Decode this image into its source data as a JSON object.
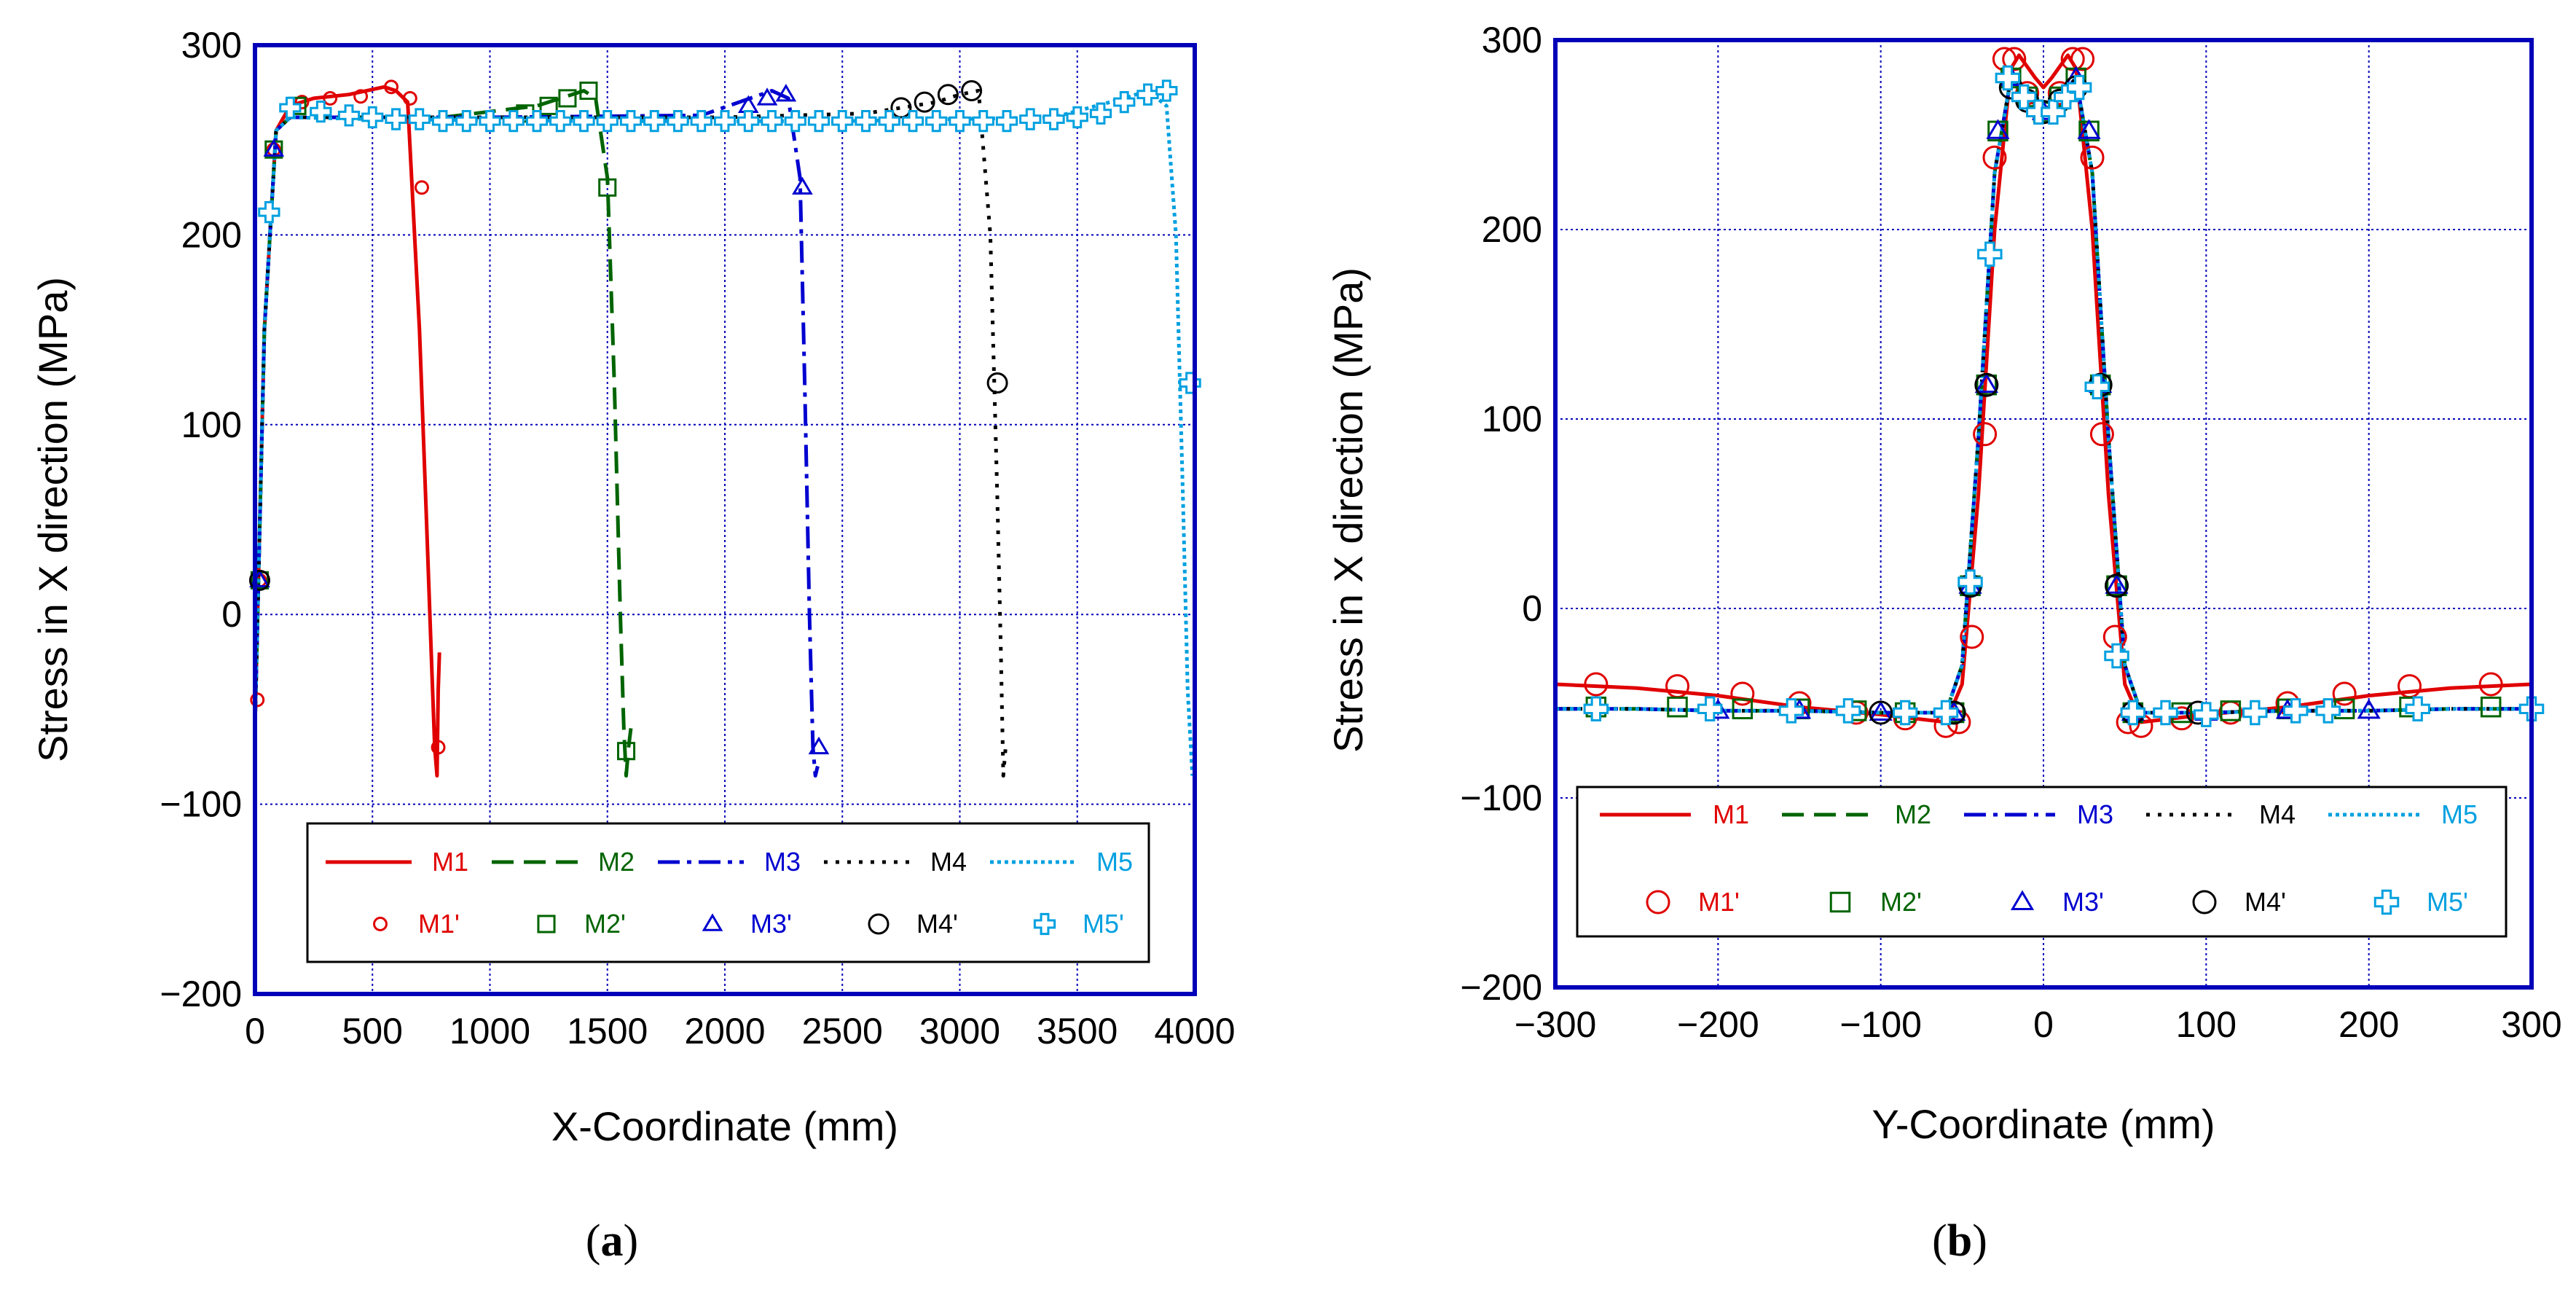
{
  "figure": {
    "panel_a_label": "a",
    "panel_b_label": "b"
  },
  "colors": {
    "M1": "#e00000",
    "M2": "#006400",
    "M3": "#0000d0",
    "M4": "#000000",
    "M5": "#00a0e0",
    "frame": "#0000b8",
    "grid": "#0000b8"
  },
  "chart_data": [
    {
      "id": "a",
      "type": "line",
      "title": "",
      "xlabel": "X-Coordinate (mm)",
      "ylabel": "Stress in X direction (MPa)",
      "xlim": [
        0,
        4000
      ],
      "ylim": [
        -200,
        300
      ],
      "xticks": [
        0,
        500,
        1000,
        1500,
        2000,
        2500,
        3000,
        3500,
        4000
      ],
      "xtick_labels": [
        "0",
        "500",
        "1000",
        "1500",
        "2000",
        "2500",
        "3000",
        "3500",
        "4000"
      ],
      "yticks": [
        -200,
        -100,
        0,
        100,
        200,
        300
      ],
      "ytick_labels": [
        "−200",
        "−100",
        "0",
        "100",
        "200",
        "300"
      ],
      "grid": true,
      "legend_position": "bottom-right",
      "series": [
        {
          "name": "M1",
          "style": "solid",
          "x": [
            0,
            40,
            90,
            150,
            250,
            400,
            550,
            600,
            650,
            700,
            730,
            750,
            765,
            775,
            780,
            785
          ],
          "y": [
            -60,
            150,
            255,
            268,
            272,
            274,
            278,
            276,
            270,
            150,
            50,
            -20,
            -70,
            -85,
            -40,
            -20
          ]
        },
        {
          "name": "M2",
          "style": "dash",
          "x": [
            0,
            40,
            90,
            150,
            400,
            800,
            1200,
            1400,
            1450,
            1500,
            1530,
            1555,
            1570,
            1580,
            1590,
            1600
          ],
          "y": [
            -60,
            150,
            255,
            262,
            262,
            262,
            268,
            276,
            272,
            230,
            120,
            0,
            -60,
            -85,
            -70,
            -60
          ]
        },
        {
          "name": "M3",
          "style": "dashdot",
          "x": [
            0,
            40,
            90,
            150,
            500,
            1000,
            1900,
            2200,
            2270,
            2320,
            2340,
            2360,
            2375,
            2385,
            2395
          ],
          "y": [
            -60,
            150,
            255,
            262,
            262,
            262,
            263,
            276,
            272,
            230,
            120,
            0,
            -70,
            -85,
            -80
          ]
        },
        {
          "name": "M4",
          "style": "dot",
          "x": [
            0,
            40,
            90,
            150,
            600,
            1200,
            2000,
            2600,
            2900,
            3000,
            3080,
            3130,
            3160,
            3175,
            3185,
            3195
          ],
          "y": [
            -60,
            150,
            255,
            262,
            262,
            262,
            262,
            264,
            270,
            274,
            276,
            200,
            60,
            -20,
            -85,
            -70
          ]
        },
        {
          "name": "M5",
          "style": "finedot",
          "x": [
            0,
            40,
            90,
            150,
            500,
            1500,
            2500,
            3400,
            3700,
            3800,
            3880,
            3920,
            3950,
            3970,
            3990
          ],
          "y": [
            -60,
            150,
            255,
            262,
            261,
            260,
            260,
            262,
            272,
            276,
            268,
            200,
            60,
            -40,
            -85
          ]
        }
      ],
      "markers": [
        {
          "name": "M1'",
          "symbol": "circle-small",
          "x": [
            10,
            20,
            80,
            200,
            320,
            450,
            580,
            660,
            710,
            780
          ],
          "y": [
            -45,
            18,
            245,
            270,
            272,
            273,
            278,
            272,
            225,
            -70
          ]
        },
        {
          "name": "M2'",
          "symbol": "square",
          "x": [
            20,
            80,
            180,
            1150,
            1250,
            1330,
            1420,
            1500,
            1580
          ],
          "y": [
            18,
            245,
            268,
            264,
            268,
            272,
            276,
            225,
            -72
          ]
        },
        {
          "name": "M3'",
          "symbol": "triangle",
          "x": [
            20,
            80,
            2100,
            2180,
            2260,
            2330,
            2400
          ],
          "y": [
            18,
            245,
            268,
            272,
            274,
            225,
            -70
          ]
        },
        {
          "name": "M4'",
          "symbol": "circle",
          "x": [
            20,
            2750,
            2850,
            2950,
            3050,
            3160
          ],
          "y": [
            18,
            267,
            270,
            274,
            276,
            122
          ]
        },
        {
          "name": "M5'",
          "symbol": "plus",
          "x": [
            60,
            150,
            280,
            400,
            500,
            600,
            700,
            800,
            900,
            1000,
            1100,
            1200,
            1300,
            1400,
            1500,
            1600,
            1700,
            1800,
            1900,
            2000,
            2100,
            2200,
            2300,
            2400,
            2500,
            2600,
            2700,
            2800,
            2900,
            3000,
            3100,
            3200,
            3300,
            3400,
            3500,
            3600,
            3700,
            3800,
            3880,
            3980
          ],
          "y": [
            212,
            267,
            265,
            263,
            262,
            261,
            261,
            260,
            260,
            260,
            260,
            260,
            260,
            260,
            260,
            260,
            260,
            260,
            260,
            260,
            260,
            260,
            260,
            260,
            260,
            260,
            260,
            260,
            260,
            260,
            260,
            260,
            261,
            261,
            262,
            264,
            270,
            274,
            276,
            122
          ]
        }
      ]
    },
    {
      "id": "b",
      "type": "line",
      "title": "",
      "xlabel": "Y-Coordinate (mm)",
      "ylabel": "Stress in X direction (MPa)",
      "xlim": [
        -300,
        300
      ],
      "ylim": [
        -200,
        300
      ],
      "xticks": [
        -300,
        -200,
        -100,
        0,
        100,
        200,
        300
      ],
      "xtick_labels": [
        "−300",
        "−200",
        "−100",
        "0",
        "100",
        "200",
        "300"
      ],
      "yticks": [
        -200,
        -100,
        0,
        100,
        200,
        300
      ],
      "ytick_labels": [
        "−200",
        "−100",
        "0",
        "100",
        "200",
        "300"
      ],
      "grid": true,
      "legend_position": "bottom",
      "series": [
        {
          "name": "M1",
          "style": "solid",
          "x": [
            -300,
            -250,
            -200,
            -150,
            -100,
            -60,
            -50,
            -40,
            -30,
            -20,
            -15,
            -5,
            0,
            5,
            15,
            20,
            30,
            40,
            50,
            60,
            100,
            150,
            200,
            250,
            300
          ],
          "y": [
            -40,
            -42,
            -46,
            -52,
            -56,
            -60,
            -40,
            60,
            200,
            285,
            292,
            280,
            275,
            280,
            292,
            285,
            200,
            60,
            -40,
            -60,
            -56,
            -52,
            -46,
            -42,
            -40
          ]
        },
        {
          "name": "M2",
          "style": "dash",
          "x": [
            -300,
            -250,
            -200,
            -150,
            -100,
            -60,
            -50,
            -40,
            -30,
            -20,
            -10,
            0,
            10,
            20,
            30,
            40,
            50,
            60,
            100,
            150,
            200,
            250,
            300
          ],
          "y": [
            -53,
            -53,
            -54,
            -54,
            -55,
            -55,
            -30,
            90,
            230,
            280,
            270,
            262,
            270,
            280,
            230,
            90,
            -30,
            -55,
            -55,
            -54,
            -54,
            -53,
            -53
          ]
        },
        {
          "name": "M3",
          "style": "dashdot",
          "x": [
            -300,
            -250,
            -200,
            -150,
            -100,
            -60,
            -50,
            -40,
            -30,
            -20,
            -10,
            0,
            10,
            20,
            30,
            40,
            50,
            60,
            100,
            150,
            200,
            250,
            300
          ],
          "y": [
            -53,
            -53,
            -54,
            -54,
            -55,
            -55,
            -30,
            90,
            230,
            280,
            270,
            262,
            270,
            280,
            230,
            90,
            -30,
            -55,
            -55,
            -54,
            -54,
            -53,
            -53
          ]
        },
        {
          "name": "M4",
          "style": "dot",
          "x": [
            -300,
            -250,
            -200,
            -150,
            -100,
            -60,
            -50,
            -40,
            -30,
            -20,
            -10,
            0,
            10,
            20,
            30,
            40,
            50,
            60,
            100,
            150,
            200,
            250,
            300
          ],
          "y": [
            -53,
            -53,
            -54,
            -54,
            -55,
            -55,
            -30,
            90,
            230,
            280,
            270,
            262,
            270,
            280,
            230,
            90,
            -30,
            -55,
            -55,
            -54,
            -54,
            -53,
            -53
          ]
        },
        {
          "name": "M5",
          "style": "finedot",
          "x": [
            -300,
            -250,
            -200,
            -150,
            -100,
            -60,
            -50,
            -40,
            -30,
            -20,
            -10,
            0,
            10,
            20,
            30,
            40,
            50,
            60,
            100,
            150,
            200,
            250,
            300
          ],
          "y": [
            -53,
            -53,
            -54,
            -54,
            -55,
            -55,
            -30,
            90,
            230,
            280,
            270,
            262,
            270,
            280,
            230,
            90,
            -30,
            -55,
            -55,
            -54,
            -54,
            -53,
            -53
          ]
        }
      ],
      "markers": [
        {
          "name": "M1'",
          "symbol": "circle",
          "x": [
            -275,
            -225,
            -185,
            -150,
            -115,
            -85,
            -60,
            -52,
            -44,
            -36,
            -30,
            -24,
            -18,
            -10,
            0,
            10,
            18,
            24,
            30,
            36,
            44,
            52,
            60,
            85,
            115,
            150,
            185,
            225,
            275
          ],
          "y": [
            -40,
            -41,
            -45,
            -50,
            -55,
            -58,
            -62,
            -60,
            -15,
            92,
            238,
            290,
            290,
            272,
            262,
            272,
            290,
            290,
            238,
            92,
            -15,
            -60,
            -62,
            -58,
            -55,
            -50,
            -45,
            -41,
            -40
          ]
        },
        {
          "name": "M2'",
          "symbol": "square",
          "x": [
            -275,
            -225,
            -185,
            -150,
            -115,
            -85,
            -55,
            -45,
            -35,
            -28,
            -20,
            -10,
            0,
            10,
            20,
            28,
            35,
            45,
            55,
            85,
            115,
            150,
            185,
            225,
            275
          ],
          "y": [
            -52,
            -52,
            -53,
            -53,
            -54,
            -55,
            -55,
            12,
            118,
            252,
            280,
            270,
            262,
            270,
            280,
            252,
            118,
            12,
            -55,
            -55,
            -54,
            -53,
            -53,
            -52,
            -52
          ]
        },
        {
          "name": "M3'",
          "symbol": "triangle",
          "x": [
            -200,
            -150,
            -100,
            -55,
            -45,
            -35,
            -28,
            -20,
            0,
            20,
            28,
            35,
            45,
            55,
            100,
            150,
            200
          ],
          "y": [
            -54,
            -54,
            -55,
            -55,
            12,
            118,
            252,
            280,
            262,
            280,
            252,
            118,
            12,
            -55,
            -55,
            -54,
            -54
          ]
        },
        {
          "name": "M4'",
          "symbol": "circle",
          "x": [
            -100,
            -55,
            -45,
            -35,
            -20,
            -10,
            0,
            10,
            20,
            35,
            45,
            55,
            95
          ],
          "y": [
            -55,
            -55,
            12,
            118,
            275,
            268,
            262,
            268,
            275,
            118,
            12,
            -55,
            -55
          ]
        },
        {
          "name": "M5'",
          "symbol": "plus",
          "x": [
            -275,
            -205,
            -155,
            -120,
            -85,
            -60,
            -45,
            -33,
            -22,
            -12,
            -3,
            6,
            14,
            22,
            33,
            45,
            55,
            75,
            100,
            130,
            155,
            175,
            230,
            300
          ],
          "y": [
            -53,
            -53,
            -54,
            -54,
            -55,
            -55,
            14,
            187,
            280,
            270,
            262,
            262,
            270,
            275,
            117,
            -25,
            -55,
            -55,
            -56,
            -55,
            -54,
            -54,
            -53,
            -53
          ]
        }
      ]
    }
  ]
}
